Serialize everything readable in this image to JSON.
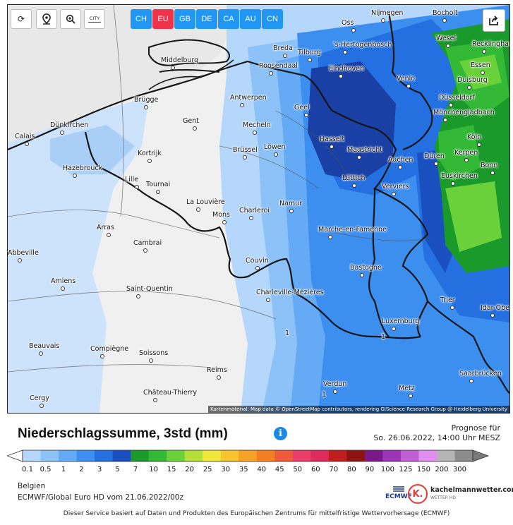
{
  "controls": {
    "refresh_glyph": "⟳",
    "city_toggle_label": "CITY"
  },
  "regions": [
    {
      "label": "CH",
      "color": "#2196f3"
    },
    {
      "label": "EU",
      "color": "#f0324b"
    },
    {
      "label": "GB",
      "color": "#2196f3"
    },
    {
      "label": "DE",
      "color": "#2196f3"
    },
    {
      "label": "CA",
      "color": "#2196f3"
    },
    {
      "label": "AU",
      "color": "#2196f3"
    },
    {
      "label": "CN",
      "color": "#2196f3"
    }
  ],
  "cities": [
    {
      "name": "Nijmegen"
    },
    {
      "name": "Bocholt"
    },
    {
      "name": "Oss"
    },
    {
      "name": "Wesel"
    },
    {
      "name": "Recklinghausen"
    },
    {
      "name": "Middelburg"
    },
    {
      "name": "Breda"
    },
    {
      "name": "Tilburg"
    },
    {
      "name": "'s-Hertogenbosch"
    },
    {
      "name": "Roosendaal"
    },
    {
      "name": "Eindhoven"
    },
    {
      "name": "Venlo"
    },
    {
      "name": "Essen"
    },
    {
      "name": "Duisburg"
    },
    {
      "name": "Düsseldorf"
    },
    {
      "name": "Brügge"
    },
    {
      "name": "Antwerpen"
    },
    {
      "name": "Geel"
    },
    {
      "name": "Mönchengladbach"
    },
    {
      "name": "Gent"
    },
    {
      "name": "Mecheln"
    },
    {
      "name": "Hasselt"
    },
    {
      "name": "Köln"
    },
    {
      "name": "Dünkirchen"
    },
    {
      "name": "Calais"
    },
    {
      "name": "Kortrijk"
    },
    {
      "name": "Brüssel"
    },
    {
      "name": "Löwen"
    },
    {
      "name": "Maastricht"
    },
    {
      "name": "Düren"
    },
    {
      "name": "Kerpen"
    },
    {
      "name": "Aachen"
    },
    {
      "name": "Hazebrouck"
    },
    {
      "name": "Bonn"
    },
    {
      "name": "Lille"
    },
    {
      "name": "Tournai"
    },
    {
      "name": "Lüttich"
    },
    {
      "name": "Verviers"
    },
    {
      "name": "Euskirchen"
    },
    {
      "name": "La Louvière"
    },
    {
      "name": "Mons"
    },
    {
      "name": "Charleroi"
    },
    {
      "name": "Namur"
    },
    {
      "name": "Arras"
    },
    {
      "name": "Marche-en-Famenne"
    },
    {
      "name": "Cambrai"
    },
    {
      "name": "Abbeville"
    },
    {
      "name": "Couvin"
    },
    {
      "name": "Bastogne"
    },
    {
      "name": "Amiens"
    },
    {
      "name": "Saint-Quentin"
    },
    {
      "name": "Charleville-Mézières"
    },
    {
      "name": "Trier"
    },
    {
      "name": "Idar-Oberstein"
    },
    {
      "name": "Luxemburg"
    },
    {
      "name": "Beauvais"
    },
    {
      "name": "Compiègne"
    },
    {
      "name": "Soissons"
    },
    {
      "name": "Saarbrücken"
    },
    {
      "name": "Reims"
    },
    {
      "name": "Verdun"
    },
    {
      "name": "Metz"
    },
    {
      "name": "Château-Thierry"
    },
    {
      "name": "Cergy"
    }
  ],
  "attribution": "Kartenmaterial: Map data © OpenStreetMap contributors, rendering GIScience Research Group @ Heidelberg University",
  "legend_title": "Niederschlagssumme, 3std (mm)",
  "forecast_label": "Prognose für",
  "forecast_time": "So. 26.06.2022, 14:00 Uhr MESZ",
  "legend_scale": [
    {
      "label": "0.1",
      "color": "#b5d7fb"
    },
    {
      "label": "0.5",
      "color": "#8cc2f8"
    },
    {
      "label": "1",
      "color": "#64aaf5"
    },
    {
      "label": "2",
      "color": "#3d8fef"
    },
    {
      "label": "3",
      "color": "#2470e0"
    },
    {
      "label": "5",
      "color": "#1a4fc0"
    },
    {
      "label": "7",
      "color": "#1a9a2a"
    },
    {
      "label": "10",
      "color": "#33b936"
    },
    {
      "label": "15",
      "color": "#6bd13b"
    },
    {
      "label": "20",
      "color": "#b4df3a"
    },
    {
      "label": "25",
      "color": "#f0e53a"
    },
    {
      "label": "30",
      "color": "#f7c42d"
    },
    {
      "label": "35",
      "color": "#f6a225"
    },
    {
      "label": "40",
      "color": "#f37f20"
    },
    {
      "label": "45",
      "color": "#ef5a3d"
    },
    {
      "label": "50",
      "color": "#ea3d6a"
    },
    {
      "label": "60",
      "color": "#de2a5f"
    },
    {
      "label": "70",
      "color": "#c01e1e"
    },
    {
      "label": "80",
      "color": "#8e1414"
    },
    {
      "label": "90",
      "color": "#7a1a8a"
    },
    {
      "label": "100",
      "color": "#9c35b5"
    },
    {
      "label": "125",
      "color": "#c05ed4"
    },
    {
      "label": "150",
      "color": "#e08ef0"
    },
    {
      "label": "200",
      "color": "#b5b5b5"
    },
    {
      "label": "300",
      "color": "#8c8c8c"
    }
  ],
  "region_name": "Belgien",
  "model_info": "ECMWF/Global Euro HD vom 21.06.2022/00z",
  "logo_ecmwf": "ECMWF",
  "logo_kachelmann": "kachelmannwetter.com",
  "logo_kachelmann_sub": "WETTER HD",
  "footer": "Dieser Service basiert auf Daten und Produkten des Europäischen Zentrums für mittelfristige Wettervorhersage (ECMWF)",
  "contour_labels": [
    "1",
    "1",
    "1"
  ]
}
